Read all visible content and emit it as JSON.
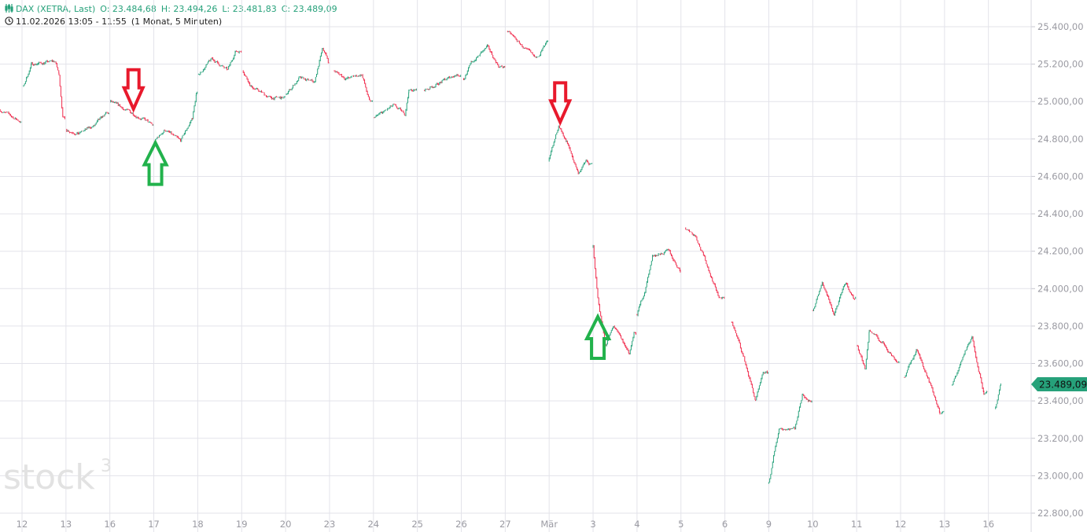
{
  "header": {
    "instrument": "DAX (XETRA, Last)",
    "open": "O: 23.484,68",
    "high": "H: 23.494,26",
    "low": "L: 23.481,83",
    "close": "C: 23.489,09",
    "range": "11.02.2026 13:05 - 11:55",
    "period": "(1 Monat, 5 Minuten)",
    "icon": "candles-icon",
    "time_icon": "clock-icon"
  },
  "watermark": "stock3",
  "colors": {
    "up": "#26a17a",
    "down": "#f0284a",
    "grid": "#e3e3ea",
    "arrow_down": "#e8192c",
    "arrow_up": "#22b24c",
    "badge": "#26a17a"
  },
  "chart_data": {
    "type": "candlestick",
    "title": "DAX (XETRA, Last)",
    "interval": "5 Minuten",
    "ylim": [
      22700,
      25500
    ],
    "yticks": [
      22800,
      23000,
      23200,
      23400,
      23600,
      23800,
      24000,
      24200,
      24400,
      24600,
      24800,
      25000,
      25200,
      25400
    ],
    "ytick_labels": [
      "22.800,00",
      "23.000,00",
      "23.200,00",
      "23.400,00",
      "23.600,00",
      "23.800,00",
      "24.000,00",
      "24.200,00",
      "24.400,00",
      "24.600,00",
      "24.800,00",
      "25.000,00",
      "25.200,00",
      "25.400,00"
    ],
    "sessions": [
      "11.02",
      "12.02",
      "13.02",
      "16.02",
      "17.02",
      "18.02",
      "19.02",
      "20.02",
      "23.02",
      "24.02",
      "25.02",
      "26.02",
      "27.02",
      "02.03",
      "03.03",
      "04.03",
      "05.03",
      "06.03",
      "09.03",
      "10.03",
      "11.03",
      "12.03",
      "13.03",
      "16.03"
    ],
    "xtick_labels": [
      "",
      "12",
      "13",
      "16",
      "17",
      "18",
      "19",
      "20",
      "23",
      "24",
      "25",
      "26",
      "27",
      "Mär",
      "3",
      "4",
      "5",
      "6",
      "9",
      "10",
      "11",
      "12",
      "13",
      "16"
    ],
    "grid": true,
    "last_price": 23489.09,
    "last_price_label": "23.489,09",
    "price_path": [
      [
        "11.02 15:00",
        24955
      ],
      [
        "11.02 21:30",
        24892
      ],
      [
        "12.02 08:30",
        25081
      ],
      [
        "12.02 11:00",
        25200
      ],
      [
        "12.02 18:30",
        25215
      ],
      [
        "12.02 19:45",
        25144
      ],
      [
        "12.02 21:00",
        24913
      ],
      [
        "13.02 08:15",
        24850
      ],
      [
        "13.02 12:00",
        24829
      ],
      [
        "13.02 17:00",
        24871
      ],
      [
        "13.02 20:45",
        24934
      ],
      [
        "16.02 08:15",
        24997
      ],
      [
        "16.02 13:00",
        24955
      ],
      [
        "16.02 18:00",
        24913
      ],
      [
        "16.02 21:45",
        24870
      ],
      [
        "17.02 08:15",
        24787
      ],
      [
        "17.02 11:30",
        24850
      ],
      [
        "17.02 16:30",
        24787
      ],
      [
        "17.02 20:15",
        24913
      ],
      [
        "17.02 21:30",
        25039
      ],
      [
        "18.02 08:15",
        25144
      ],
      [
        "18.02 12:30",
        25228
      ],
      [
        "18.02 17:30",
        25165
      ],
      [
        "18.02 20:00",
        25270
      ],
      [
        "19.02 08:30",
        25165
      ],
      [
        "19.02 11:00",
        25081
      ],
      [
        "19.02 17:15",
        25018
      ],
      [
        "20.02 08:15",
        25039
      ],
      [
        "20.02 12:15",
        25123
      ],
      [
        "20.02 17:15",
        25102
      ],
      [
        "20.02 19:45",
        25291
      ],
      [
        "20.02 21:45",
        25207
      ],
      [
        "23.02 09:30",
        25165
      ],
      [
        "23.02 13:15",
        25123
      ],
      [
        "23.02 18:15",
        25144
      ],
      [
        "23.02 20:45",
        24997
      ],
      [
        "24.02 08:15",
        24913
      ],
      [
        "24.02 14:15",
        24976
      ],
      [
        "24.02 18:00",
        24934
      ],
      [
        "24.02 19:15",
        25060
      ],
      [
        "25.02 10:15",
        25060
      ],
      [
        "25.02 15:15",
        25102
      ],
      [
        "25.02 20:15",
        25144
      ],
      [
        "26.02 08:45",
        25123
      ],
      [
        "26.02 11:15",
        25207
      ],
      [
        "26.02 16:15",
        25291
      ],
      [
        "26.02 20:00",
        25186
      ],
      [
        "27.02 08:45",
        25375
      ],
      [
        "27.02 12:30",
        25312
      ],
      [
        "27.02 17:30",
        25228
      ],
      [
        "27.02 21:15",
        25312
      ],
      [
        "02.03 08:00",
        24682
      ],
      [
        "02.03 11:00",
        24871
      ],
      [
        "02.03 13:30",
        24787
      ],
      [
        "02.03 17:15",
        24619
      ],
      [
        "02.03 19:45",
        24682
      ],
      [
        "02.03 21:00",
        24661
      ],
      [
        "03.03 08:00",
        24220
      ],
      [
        "03.03 09:30",
        23947
      ],
      [
        "03.03 12:00",
        23695
      ],
      [
        "03.03 14:30",
        23800
      ],
      [
        "03.03 19:30",
        23653
      ],
      [
        "03.03 21:00",
        23758
      ],
      [
        "04.03 08:00",
        23863
      ],
      [
        "04.03 10:30",
        23989
      ],
      [
        "04.03 13:00",
        24178
      ],
      [
        "04.03 18:00",
        24199
      ],
      [
        "04.03 21:45",
        24094
      ],
      [
        "05.03 09:30",
        24325
      ],
      [
        "05.03 12:45",
        24283
      ],
      [
        "05.03 16:30",
        24115
      ],
      [
        "05.03 20:15",
        23947
      ],
      [
        "06.03 10:15",
        23821
      ],
      [
        "06.03 14:00",
        23632
      ],
      [
        "06.03 17:45",
        23401
      ],
      [
        "06.03 20:15",
        23548
      ],
      [
        "09.03 08:00",
        22960
      ],
      [
        "09.03 11:15",
        23254
      ],
      [
        "09.03 16:15",
        23254
      ],
      [
        "09.03 18:45",
        23443
      ],
      [
        "09.03 20:45",
        23401
      ],
      [
        "10.03 08:00",
        23884
      ],
      [
        "10.03 11:00",
        24031
      ],
      [
        "10.03 14:45",
        23863
      ],
      [
        "10.03 18:30",
        24031
      ],
      [
        "10.03 21:00",
        23947
      ],
      [
        "11.03 08:15",
        23695
      ],
      [
        "11.03 10:45",
        23569
      ],
      [
        "11.03 12:00",
        23779
      ],
      [
        "11.03 17:00",
        23695
      ],
      [
        "11.03 20:45",
        23611
      ],
      [
        "12.03 09:15",
        23527
      ],
      [
        "12.03 13:00",
        23674
      ],
      [
        "12.03 16:45",
        23527
      ],
      [
        "12.03 20:30",
        23338
      ],
      [
        "13.03 10:30",
        23485
      ],
      [
        "13.03 14:15",
        23653
      ],
      [
        "13.03 16:45",
        23737
      ],
      [
        "13.03 20:30",
        23443
      ],
      [
        "16.03 10:15",
        23359
      ],
      [
        "16.03 11:55",
        23489
      ]
    ],
    "annotations": [
      {
        "type": "arrow-down",
        "color": "red",
        "at": "16.02 15:30",
        "price": 24960
      },
      {
        "type": "arrow-up",
        "color": "green",
        "at": "17.02 08:30",
        "price": 24780
      },
      {
        "type": "arrow-down",
        "color": "red",
        "at": "02.03 11:30",
        "price": 24890
      },
      {
        "type": "arrow-up",
        "color": "green",
        "at": "03.03 09:30",
        "price": 23850
      }
    ]
  }
}
